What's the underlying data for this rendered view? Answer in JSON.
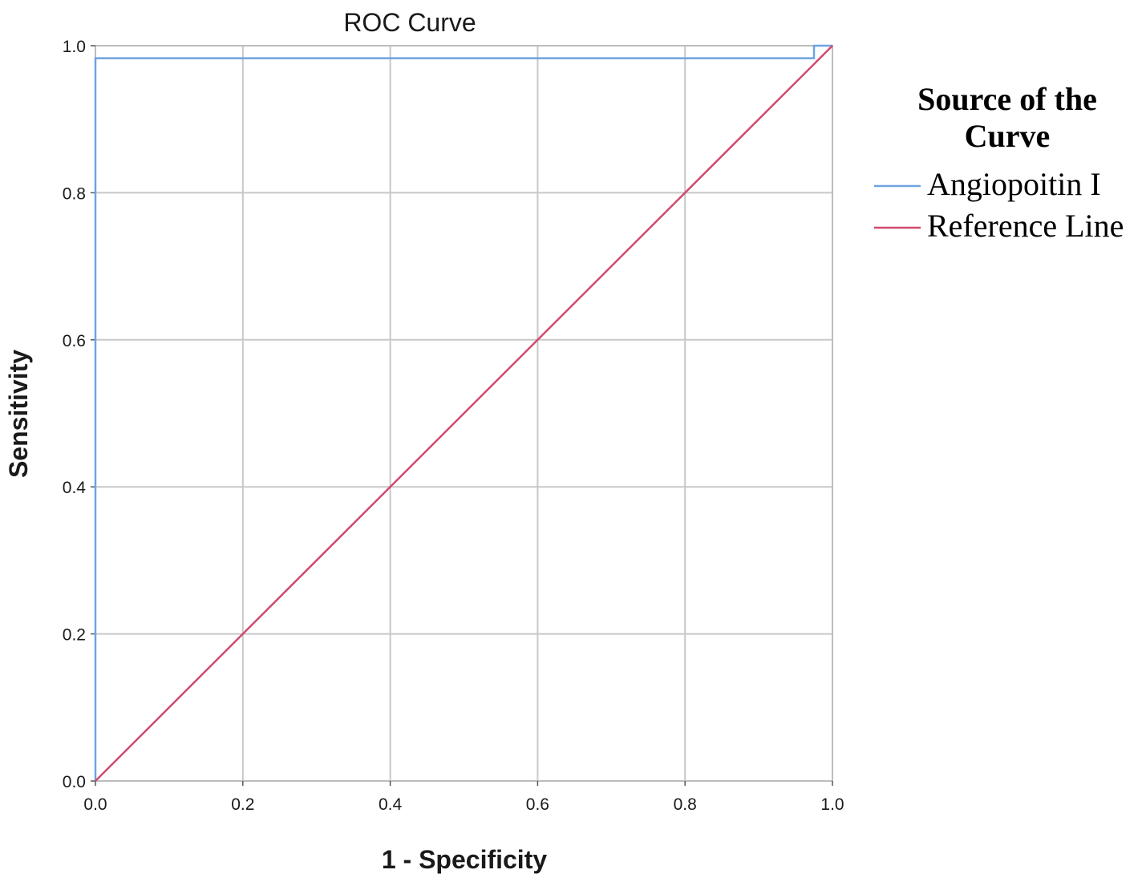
{
  "chart_data": {
    "type": "line",
    "title": "ROC Curve",
    "xlabel": "1 - Specificity",
    "ylabel": "Sensitivity",
    "xlim": [
      0,
      1
    ],
    "ylim": [
      0,
      1
    ],
    "x_ticks": [
      "0.0",
      "0.2",
      "0.4",
      "0.6",
      "0.8",
      "1.0"
    ],
    "y_ticks": [
      "0.0",
      "0.2",
      "0.4",
      "0.6",
      "0.8",
      "1.0"
    ],
    "grid": true,
    "legend": {
      "title_lines": [
        "Source of the",
        "Curve"
      ],
      "placement": "right",
      "entries": [
        "Angiopoitin I",
        "Reference Line"
      ]
    },
    "series": [
      {
        "name": "Angiopoitin I",
        "color": "#6fa3e0",
        "points": [
          [
            0,
            0
          ],
          [
            0,
            0.983
          ],
          [
            0.975,
            0.983
          ],
          [
            0.975,
            1.0
          ],
          [
            1.0,
            1.0
          ]
        ]
      },
      {
        "name": "Reference Line",
        "color": "#d14a6e",
        "points": [
          [
            0,
            0
          ],
          [
            1,
            1
          ]
        ]
      }
    ]
  }
}
